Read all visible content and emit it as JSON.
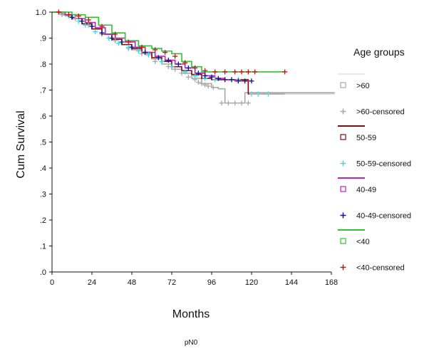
{
  "chart_data": {
    "type": "line",
    "title": "",
    "subtitle": "pN0",
    "xlabel": "Months",
    "ylabel": "Cum Survival",
    "xlim": [
      0,
      168
    ],
    "ylim": [
      0,
      1.0
    ],
    "x_ticks": [
      0,
      24,
      48,
      72,
      96,
      120,
      144,
      168
    ],
    "x_tick_labels": [
      "0",
      "24",
      "48",
      "72",
      "96",
      "120",
      "144",
      "168"
    ],
    "y_ticks": [
      0,
      0.1,
      0.2,
      0.3,
      0.4,
      0.5,
      0.6,
      0.7,
      0.8,
      0.9,
      1.0
    ],
    "y_tick_labels": [
      ".0",
      ".1",
      ".2",
      ".3",
      ".4",
      ".5",
      ".6",
      ".7",
      ".8",
      ".9",
      "1.0"
    ],
    "grid": false,
    "legend_title": "Age groups",
    "legend_placement": "right",
    "legend_entries": [
      {
        "label": ">60",
        "kind": "box",
        "color": "#a8a8a8"
      },
      {
        "label": ">60-censored",
        "kind": "plus",
        "color": "#a8a8a8"
      },
      {
        "label": "50-59",
        "kind": "box",
        "color": "#7a1010"
      },
      {
        "label": "50-59-censored",
        "kind": "plus",
        "color": "#30e0e0"
      },
      {
        "label": "40-49",
        "kind": "box",
        "color": "#c020c0"
      },
      {
        "label": "40-49-censored",
        "kind": "plus",
        "color": "#10108a"
      },
      {
        "label": "<40",
        "kind": "box",
        "color": "#30c030"
      },
      {
        "label": "<40-censored",
        "kind": "plus",
        "color": "#d01010"
      }
    ],
    "series": [
      {
        "name": ">60",
        "color": "#a8a8a8",
        "censor_color": "#a8a8a8",
        "x": [
          0,
          4,
          8,
          12,
          18,
          24,
          30,
          36,
          42,
          48,
          54,
          60,
          66,
          72,
          78,
          84,
          90,
          96,
          100,
          104,
          116,
          170
        ],
        "y": [
          1.0,
          0.995,
          0.985,
          0.975,
          0.955,
          0.935,
          0.915,
          0.895,
          0.875,
          0.855,
          0.84,
          0.82,
          0.8,
          0.78,
          0.765,
          0.745,
          0.725,
          0.71,
          0.705,
          0.65,
          0.69,
          0.69
        ],
        "censored_x": [
          6,
          14,
          22,
          30,
          38,
          46,
          54,
          62,
          70,
          74,
          78,
          82,
          86,
          88,
          90,
          92,
          94,
          97,
          102,
          106,
          110,
          114,
          118
        ],
        "censored_y": [
          0.99,
          0.975,
          0.95,
          0.915,
          0.89,
          0.86,
          0.84,
          0.81,
          0.79,
          0.78,
          0.765,
          0.75,
          0.74,
          0.73,
          0.725,
          0.72,
          0.715,
          0.71,
          0.65,
          0.65,
          0.65,
          0.65,
          0.65
        ]
      },
      {
        "name": "50-59",
        "color": "#7a1010",
        "censor_color": "#30e0e0",
        "x": [
          0,
          6,
          12,
          18,
          24,
          30,
          36,
          42,
          48,
          54,
          60,
          66,
          72,
          78,
          84,
          90,
          96,
          112,
          118,
          140
        ],
        "y": [
          1.0,
          0.99,
          0.975,
          0.955,
          0.935,
          0.915,
          0.895,
          0.875,
          0.86,
          0.845,
          0.825,
          0.81,
          0.79,
          0.775,
          0.76,
          0.745,
          0.74,
          0.74,
          0.685,
          0.685
        ],
        "censored_x": [
          10,
          16,
          20,
          26,
          34,
          40,
          46,
          52,
          58,
          66,
          72,
          80,
          86,
          92,
          98,
          104,
          108,
          112,
          120,
          124,
          130
        ],
        "censored_y": [
          0.985,
          0.965,
          0.95,
          0.925,
          0.9,
          0.88,
          0.865,
          0.85,
          0.835,
          0.81,
          0.79,
          0.77,
          0.755,
          0.745,
          0.74,
          0.74,
          0.74,
          0.74,
          0.685,
          0.685,
          0.685
        ]
      },
      {
        "name": "40-49",
        "color": "#c020c0",
        "censor_color": "#10108a",
        "x": [
          0,
          8,
          14,
          20,
          26,
          32,
          38,
          44,
          50,
          56,
          62,
          68,
          74,
          80,
          86,
          92,
          98,
          104,
          110,
          120
        ],
        "y": [
          1.0,
          0.99,
          0.975,
          0.96,
          0.94,
          0.915,
          0.9,
          0.885,
          0.865,
          0.845,
          0.83,
          0.815,
          0.8,
          0.785,
          0.765,
          0.755,
          0.745,
          0.74,
          0.735,
          0.735
        ],
        "censored_x": [
          12,
          18,
          24,
          30,
          36,
          42,
          48,
          56,
          64,
          70,
          76,
          82,
          88,
          92,
          96,
          100,
          104,
          108,
          112,
          116,
          120
        ],
        "censored_y": [
          0.98,
          0.965,
          0.945,
          0.92,
          0.9,
          0.885,
          0.865,
          0.845,
          0.825,
          0.815,
          0.8,
          0.785,
          0.765,
          0.755,
          0.75,
          0.745,
          0.74,
          0.74,
          0.735,
          0.735,
          0.735
        ]
      },
      {
        "name": "<40",
        "color": "#30c030",
        "censor_color": "#d01010",
        "x": [
          0,
          12,
          20,
          28,
          36,
          44,
          52,
          60,
          66,
          72,
          78,
          84,
          90,
          96,
          140
        ],
        "y": [
          1.0,
          0.99,
          0.98,
          0.95,
          0.92,
          0.89,
          0.87,
          0.86,
          0.85,
          0.84,
          0.81,
          0.79,
          0.77,
          0.77,
          0.77
        ],
        "censored_x": [
          4,
          10,
          16,
          22,
          30,
          38,
          46,
          54,
          62,
          68,
          74,
          80,
          86,
          92,
          98,
          104,
          110,
          114,
          118,
          122,
          140
        ],
        "censored_y": [
          1.0,
          0.99,
          0.985,
          0.97,
          0.945,
          0.915,
          0.885,
          0.865,
          0.855,
          0.845,
          0.83,
          0.805,
          0.785,
          0.775,
          0.77,
          0.77,
          0.77,
          0.77,
          0.77,
          0.77,
          0.77
        ]
      }
    ]
  }
}
